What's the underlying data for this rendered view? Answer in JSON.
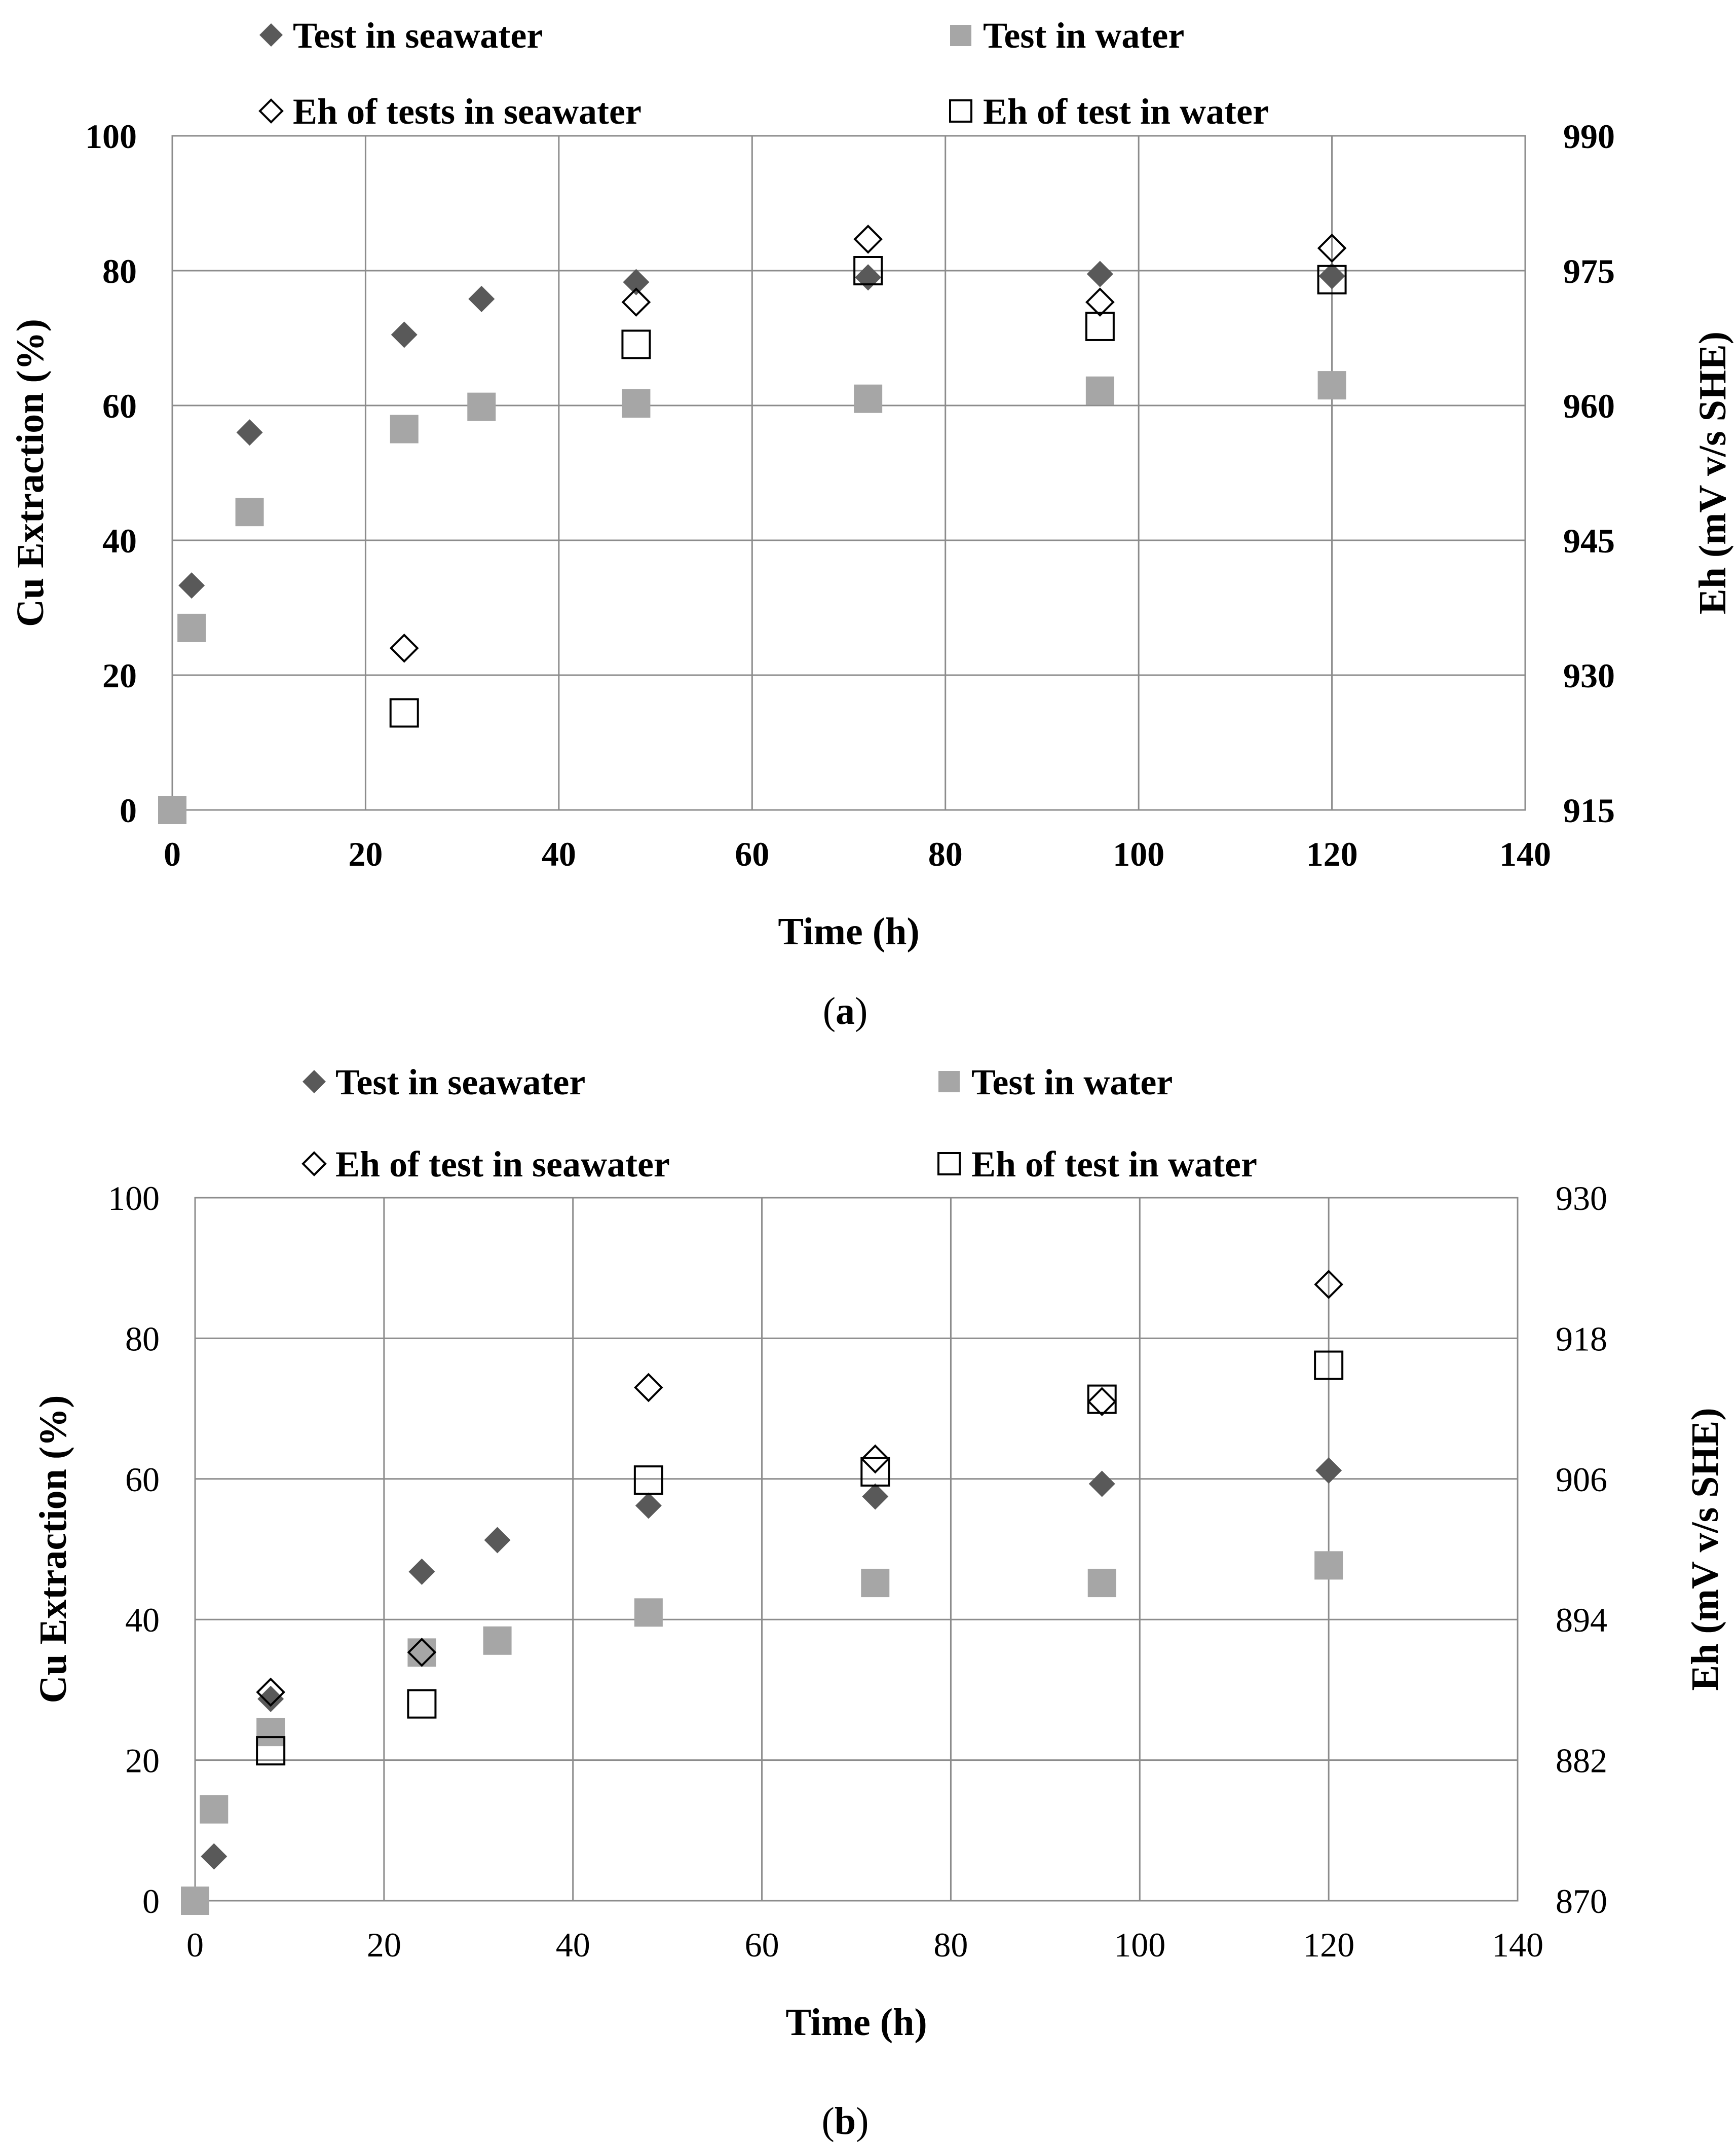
{
  "figure": {
    "panels": [
      {
        "caption": "(a)",
        "caption_letter": "a",
        "legend": [
          {
            "label": "Test in seawater",
            "series": "cu_seawater"
          },
          {
            "label": "Test in water",
            "series": "cu_water"
          },
          {
            "label": "Eh of tests in seawater",
            "series": "eh_seawater"
          },
          {
            "label": "Eh of test in water",
            "series": "eh_water"
          }
        ]
      },
      {
        "caption": "(b)",
        "caption_letter": "b",
        "legend": [
          {
            "label": "Test in seawater",
            "series": "cu_seawater"
          },
          {
            "label": "Test in water",
            "series": "cu_water"
          },
          {
            "label": "Eh of test in seawater",
            "series": "eh_seawater"
          },
          {
            "label": "Eh of test in water",
            "series": "eh_water"
          }
        ]
      }
    ]
  },
  "chart_data": [
    {
      "type": "scatter",
      "title": "",
      "xlabel": "Time (h)",
      "ylabel": "Cu Extraction (%)",
      "y2label": "Eh (mV v/s SHE)",
      "xlim": [
        0,
        140
      ],
      "ylim": [
        0,
        100
      ],
      "y2lim": [
        915,
        990
      ],
      "xticks": [
        0,
        20,
        40,
        60,
        80,
        100,
        120,
        140
      ],
      "yticks": [
        0,
        20,
        40,
        60,
        80,
        100
      ],
      "y2ticks": [
        915,
        930,
        945,
        960,
        975,
        990
      ],
      "grid": true,
      "legend_position": "top",
      "series": [
        {
          "id": "cu_seawater",
          "name": "Test in seawater",
          "axis": "left",
          "marker": "diamond-filled",
          "color": "#595959",
          "x": [
            2,
            8,
            24,
            32,
            48,
            72,
            96,
            120
          ],
          "y": [
            33.3,
            56,
            70.5,
            75.8,
            78.3,
            79,
            79.5,
            79.2
          ]
        },
        {
          "id": "cu_water",
          "name": "Test in water",
          "axis": "left",
          "marker": "square-filled",
          "color": "#a6a6a6",
          "x": [
            0,
            2,
            8,
            24,
            32,
            48,
            72,
            96,
            120
          ],
          "y": [
            0,
            27,
            44.2,
            56.5,
            59.8,
            60.3,
            61,
            62.2,
            63
          ]
        },
        {
          "id": "eh_seawater",
          "name": "Eh of tests in seawater",
          "axis": "right",
          "marker": "diamond-open",
          "color": "#000000",
          "x": [
            24,
            48,
            72,
            96,
            120
          ],
          "y": [
            933,
            971.5,
            978.5,
            971.5,
            977.5
          ]
        },
        {
          "id": "eh_water",
          "name": "Eh of test in water",
          "axis": "right",
          "marker": "square-open",
          "color": "#000000",
          "x": [
            24,
            48,
            72,
            96,
            120
          ],
          "y": [
            925.8,
            966.8,
            975,
            968.8,
            974
          ]
        }
      ]
    },
    {
      "type": "scatter",
      "title": "",
      "xlabel": "Time (h)",
      "ylabel": "Cu Extraction (%)",
      "y2label": "Eh (mV v/s SHE)",
      "xlim": [
        0,
        140
      ],
      "ylim": [
        0,
        100
      ],
      "y2lim": [
        870,
        930
      ],
      "xticks": [
        0,
        20,
        40,
        60,
        80,
        100,
        120,
        140
      ],
      "yticks": [
        0,
        20,
        40,
        60,
        80,
        100
      ],
      "y2ticks": [
        870,
        882,
        894,
        906,
        918,
        930
      ],
      "grid": true,
      "legend_position": "top",
      "series": [
        {
          "id": "cu_seawater",
          "name": "Test in seawater",
          "axis": "left",
          "marker": "diamond-filled",
          "color": "#595959",
          "x": [
            2,
            8,
            24,
            32,
            48,
            72,
            96,
            120
          ],
          "y": [
            6.3,
            28.7,
            46.8,
            51.3,
            56.2,
            57.5,
            59.3,
            61.2
          ]
        },
        {
          "id": "cu_water",
          "name": "Test in water",
          "axis": "left",
          "marker": "square-filled",
          "color": "#a6a6a6",
          "x": [
            0,
            2,
            8,
            24,
            32,
            48,
            72,
            96,
            120
          ],
          "y": [
            0,
            13,
            24,
            35.3,
            37,
            41,
            45.2,
            45.2,
            47.7
          ]
        },
        {
          "id": "eh_seawater",
          "name": "Eh of test in seawater",
          "axis": "right",
          "marker": "diamond-open",
          "color": "#000000",
          "x": [
            8,
            24,
            48,
            72,
            96,
            120
          ],
          "y": [
            887.8,
            891.2,
            913.8,
            907.7,
            912.6,
            922.6
          ]
        },
        {
          "id": "eh_water",
          "name": "Eh of test in water",
          "axis": "right",
          "marker": "square-open",
          "color": "#000000",
          "x": [
            8,
            24,
            48,
            72,
            96,
            120
          ],
          "y": [
            882.8,
            886.8,
            905.9,
            906.6,
            912.8,
            915.7
          ]
        }
      ]
    }
  ]
}
